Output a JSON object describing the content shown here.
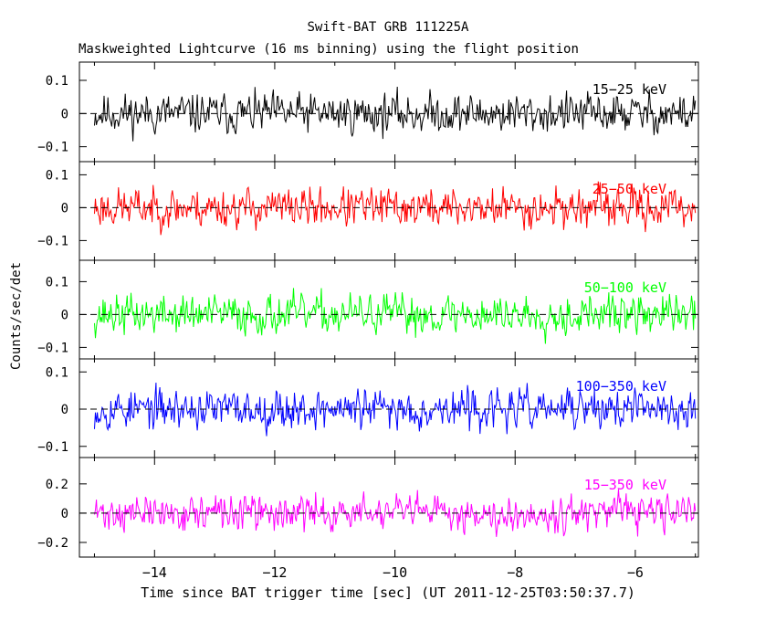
{
  "header": {
    "title": "Swift-BAT GRB 111225A",
    "subtitle": "Maskweighted Lightcurve (16 ms binning) using the flight position"
  },
  "axes": {
    "xlabel": "Time since BAT trigger time [sec] (UT 2011-12-25T03:50:37.7)",
    "ylabel": "Counts/sec/det"
  },
  "chart_data": {
    "type": "line",
    "title": "Swift-BAT GRB 111225A",
    "subtitle": "Maskweighted Lightcurve (16 ms binning) using the flight position",
    "xlabel": "Time since BAT trigger time [sec] (UT 2011-12-25T03:50:37.7)",
    "ylabel": "Counts/sec/det",
    "xlim": [
      -15.25,
      -4.95
    ],
    "x_range_data": [
      -15.0,
      -5.0
    ],
    "bin_width_sec": 0.016,
    "xticks": [
      -14,
      -12,
      -10,
      -8,
      -6
    ],
    "xtick_labels": [
      "−14",
      "−12",
      "−10",
      "−8",
      "−6"
    ],
    "grid": false,
    "panels": [
      {
        "name": "15-25 keV",
        "label": "15−25 keV",
        "color": "#000000",
        "ylim": [
          -0.145,
          0.155
        ],
        "yticks": [
          0.1,
          0,
          -0.1
        ],
        "ytick_labels": [
          "0.1",
          "0",
          "−0.1"
        ],
        "noise_amplitude": 0.045,
        "seed": 11
      },
      {
        "name": "25-50 keV",
        "label": "25−50 keV",
        "color": "#ff0000",
        "ylim": [
          -0.16,
          0.14
        ],
        "yticks": [
          0.1,
          0,
          -0.1
        ],
        "ytick_labels": [
          "0.1",
          "0",
          "−0.1"
        ],
        "noise_amplitude": 0.045,
        "seed": 23
      },
      {
        "name": "50-100 keV",
        "label": "50−100 keV",
        "color": "#00ff00",
        "ylim": [
          -0.135,
          0.165
        ],
        "yticks": [
          0.1,
          0,
          -0.1
        ],
        "ytick_labels": [
          "0.1",
          "0",
          "−0.1"
        ],
        "noise_amplitude": 0.045,
        "seed": 37
      },
      {
        "name": "100-350 keV",
        "label": "100−350 keV",
        "color": "#0000ff",
        "ylim": [
          -0.13,
          0.135
        ],
        "yticks": [
          0.1,
          0,
          -0.1
        ],
        "ytick_labels": [
          "0.1",
          "0",
          "−0.1"
        ],
        "noise_amplitude": 0.04,
        "seed": 53
      },
      {
        "name": "15-350 keV",
        "label": "15−350 keV",
        "color": "#ff00ff",
        "ylim": [
          -0.3,
          0.38
        ],
        "yticks": [
          0.2,
          0,
          -0.2
        ],
        "ytick_labels": [
          "0.2",
          "0",
          "−0.2"
        ],
        "noise_amplitude": 0.09,
        "seed": 71
      }
    ]
  }
}
